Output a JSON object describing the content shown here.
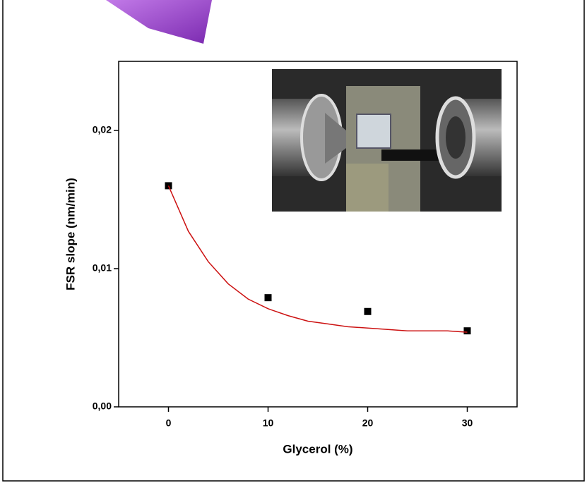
{
  "chart_data": {
    "type": "scatter",
    "x_label": "Glycerol (%)",
    "y_label": "FSR slope (nm/min)",
    "xlim": [
      -5,
      35
    ],
    "xticks": [
      0,
      10,
      20,
      30
    ],
    "ylim": [
      0,
      0.025
    ],
    "yticks": [
      {
        "value": 0,
        "label": "0,00"
      },
      {
        "value": 0.01,
        "label": "0,01"
      },
      {
        "value": 0.02,
        "label": "0,02"
      }
    ],
    "series": [
      {
        "style": "markers",
        "color": "#000000",
        "x": [
          0,
          10,
          20,
          30
        ],
        "values": [
          0.016,
          0.0079,
          0.0069,
          0.0055
        ]
      },
      {
        "style": "line",
        "color": "#cc1111",
        "x": [
          0,
          2,
          4,
          6,
          8,
          10,
          12,
          14,
          16,
          18,
          20,
          22,
          24,
          26,
          28,
          30
        ],
        "values": [
          0.016,
          0.0127,
          0.0105,
          0.0089,
          0.0078,
          0.0071,
          0.0066,
          0.0062,
          0.006,
          0.0058,
          0.0057,
          0.0056,
          0.0055,
          0.0055,
          0.0055,
          0.0054
        ]
      }
    ]
  }
}
